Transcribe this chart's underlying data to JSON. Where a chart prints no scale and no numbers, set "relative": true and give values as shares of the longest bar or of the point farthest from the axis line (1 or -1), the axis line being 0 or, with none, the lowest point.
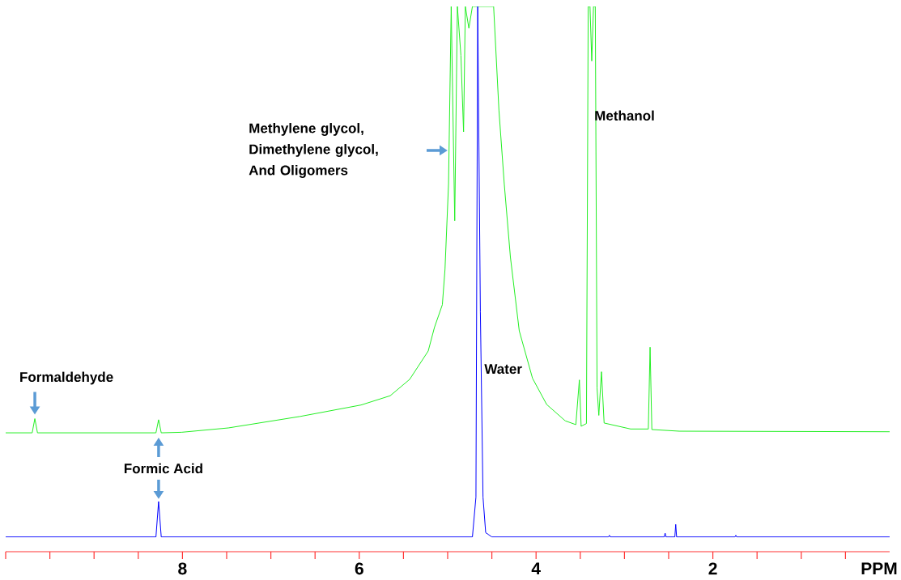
{
  "chart_data": {
    "type": "line",
    "relative": true,
    "xlabel": "PPM",
    "xlim": [
      10,
      0
    ],
    "xticks": [
      {
        "value": 10,
        "label": null
      },
      {
        "value": 9.5,
        "label": null
      },
      {
        "value": 9,
        "label": null
      },
      {
        "value": 8.5,
        "label": null
      },
      8,
      {
        "value": 7.5,
        "label": null
      },
      {
        "value": 7,
        "label": null
      },
      {
        "value": 6.5,
        "label": null
      },
      6,
      {
        "value": 5.5,
        "label": null
      },
      {
        "value": 5,
        "label": null
      },
      {
        "value": 4.5,
        "label": null
      },
      4,
      {
        "value": 3.5,
        "label": null
      },
      {
        "value": 3,
        "label": null
      },
      {
        "value": 2.5,
        "label": null
      },
      2,
      {
        "value": 1.5,
        "label": null
      },
      {
        "value": 1,
        "label": null
      },
      {
        "value": 0.5,
        "label": null
      }
    ],
    "tick_labels": "x",
    "marker": "none",
    "line_style": "solid",
    "series": [
      {
        "color": "#22ee22",
        "x": [
          10.0,
          9.7,
          9.67,
          9.64,
          8.3,
          8.27,
          8.24,
          8.01,
          7.48,
          6.67,
          5.98,
          5.65,
          5.43,
          5.22,
          5.15,
          5.06,
          5.03,
          4.99,
          4.96,
          4.92,
          4.89,
          4.85,
          4.82,
          4.8,
          4.76,
          4.72,
          4.48,
          4.42,
          4.36,
          4.29,
          4.19,
          4.04,
          3.88,
          3.67,
          3.55,
          3.51,
          3.49,
          3.43,
          3.41,
          3.39,
          3.37,
          3.35,
          3.33,
          3.31,
          3.29,
          3.26,
          3.23,
          2.93,
          2.73,
          2.71,
          2.69,
          2.38,
          0.0
        ],
        "values": [
          0.218,
          0.218,
          0.244,
          0.218,
          0.218,
          0.242,
          0.218,
          0.219,
          0.227,
          0.248,
          0.269,
          0.286,
          0.316,
          0.368,
          0.411,
          0.453,
          0.518,
          0.675,
          1,
          0.607,
          1,
          0.91,
          0.77,
          1,
          0.96,
          1,
          1,
          0.81,
          0.675,
          0.54,
          0.405,
          0.318,
          0.27,
          0.24,
          0.233,
          0.315,
          0.23,
          0.235,
          1,
          1,
          0.9,
          1,
          1,
          0.3,
          0.25,
          0.33,
          0.236,
          0.225,
          0.225,
          0.375,
          0.224,
          0.221,
          0.22
        ]
      },
      {
        "color": "#0000ff",
        "x": [
          10.0,
          8.3,
          8.27,
          8.24,
          4.72,
          4.68,
          4.66,
          4.63,
          4.6,
          4.57,
          4.5,
          3.18,
          3.17,
          3.16,
          2.55,
          2.54,
          2.53,
          2.43,
          2.42,
          2.41,
          1.75,
          1.74,
          1.73,
          0.0
        ],
        "values": [
          0.027,
          0.027,
          0.092,
          0.027,
          0.027,
          0.1,
          1,
          0.44,
          0.1,
          0.035,
          0.027,
          0.027,
          0.03,
          0.027,
          0.027,
          0.034,
          0.027,
          0.027,
          0.05,
          0.027,
          0.027,
          0.03,
          0.027,
          0.027
        ]
      }
    ],
    "annotations": [
      {
        "text": "Formaldehyde",
        "x": 9.67,
        "y": 0.244
      },
      {
        "text": "Formic Acid",
        "x": 8.27,
        "y": 0.092
      },
      "Methylene glycol, Dimethylene glycol, And Oligomers",
      {
        "text": "Water",
        "x": 4.66,
        "y": 0.335
      },
      {
        "text": "Methanol",
        "x": 3.37,
        "y": 0.8
      }
    ]
  }
}
